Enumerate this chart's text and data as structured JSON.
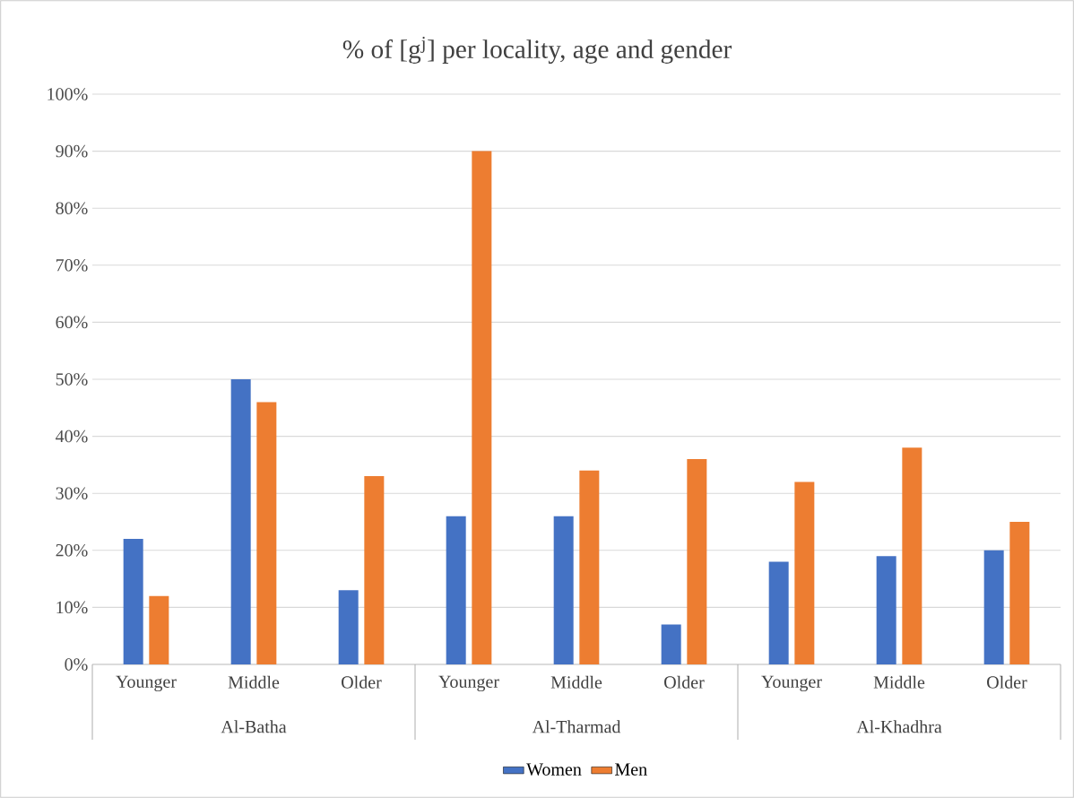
{
  "chart_data": {
    "type": "bar",
    "title": "% of [g$^{j}$] per locality, age and gender",
    "categories": [
      "Younger",
      "Middle",
      "Older",
      "Younger",
      "Middle",
      "Older",
      "Younger",
      "Middle",
      "Older"
    ],
    "series": [
      {
        "name": "Women",
        "color": "#4472c4",
        "values": [
          22,
          50,
          13,
          26,
          26,
          7,
          18,
          19,
          20
        ]
      },
      {
        "name": "Men",
        "color": "#ed7d31",
        "values": [
          12,
          46,
          33,
          90,
          34,
          36,
          32,
          38,
          25
        ]
      }
    ],
    "ylim": [
      0,
      100
    ],
    "yticks": [
      {
        "value": 0,
        "label": "0%"
      },
      {
        "value": 10,
        "label": "10%"
      },
      {
        "value": 20,
        "label": "20%"
      },
      {
        "value": 30,
        "label": "30%"
      },
      {
        "value": 40,
        "label": "40%"
      },
      {
        "value": 50,
        "label": "50%"
      },
      {
        "value": 60,
        "label": "60%"
      },
      {
        "value": 70,
        "label": "70%"
      },
      {
        "value": 80,
        "label": "80%"
      },
      {
        "value": 90,
        "label": "90%"
      },
      {
        "value": 100,
        "label": "100%"
      }
    ],
    "grid": "y",
    "legend": "bottom",
    "annotations": [
      "Al-Batha",
      "Al-Tharmad",
      "Al-Khadhra"
    ]
  }
}
